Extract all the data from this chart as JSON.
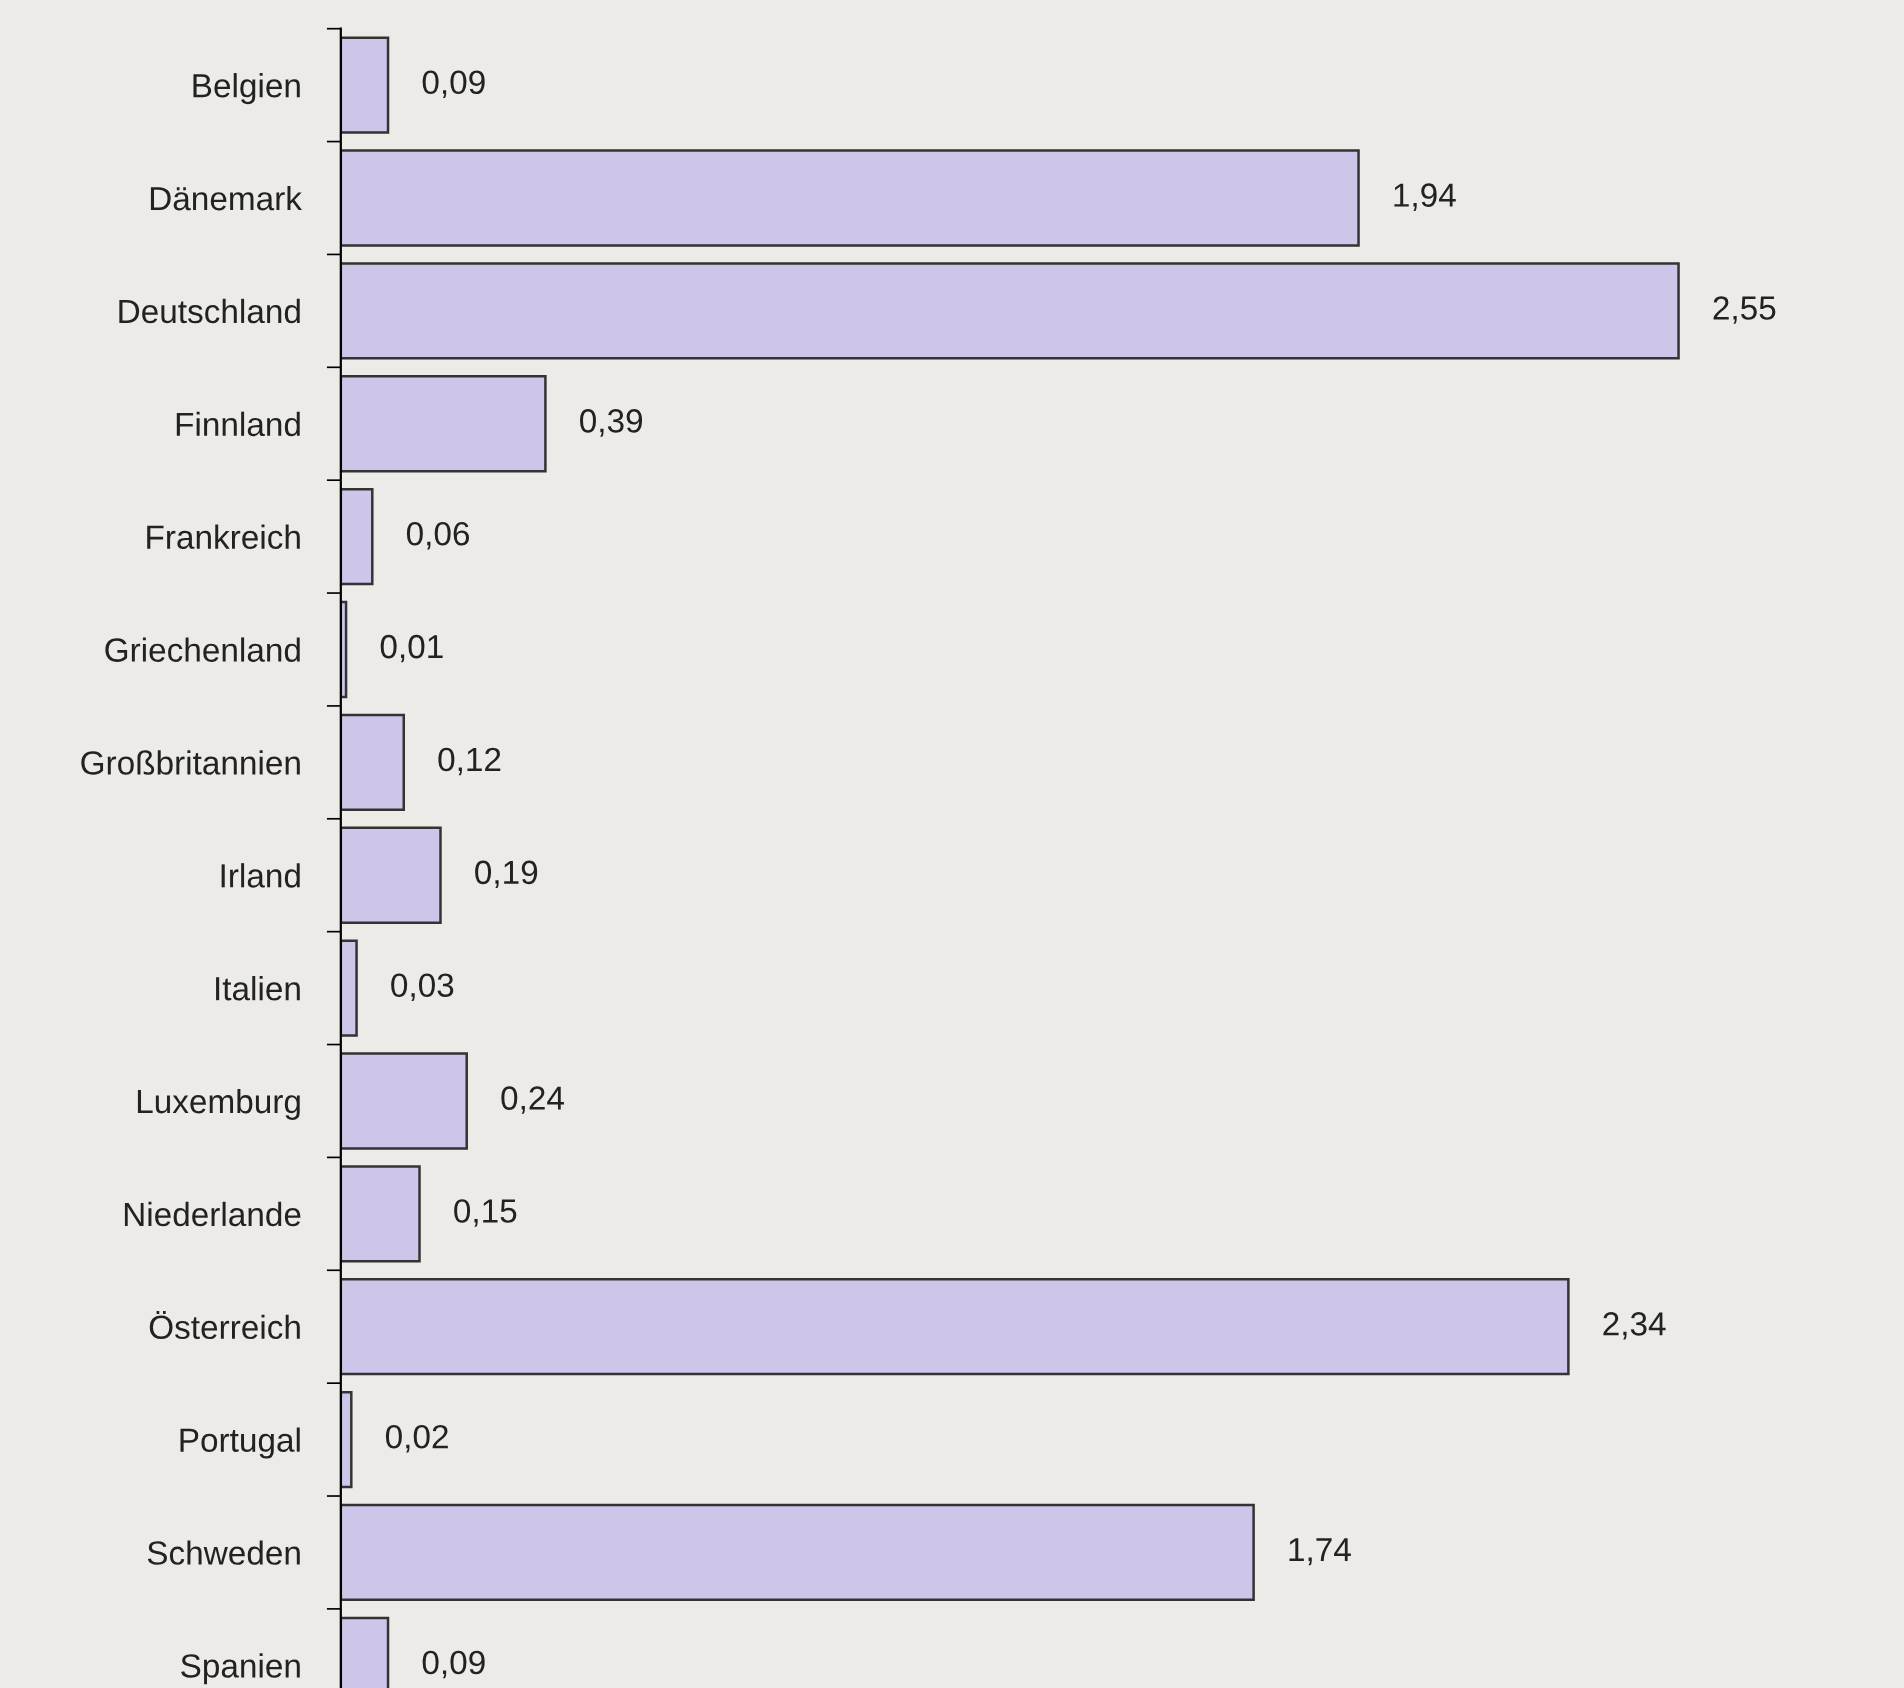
{
  "chart_data": {
    "type": "bar",
    "orientation": "horizontal",
    "categories": [
      "Belgien",
      "Dänemark",
      "Deutschland",
      "Finnland",
      "Frankreich",
      "Griechenland",
      "Großbritannien",
      "Irland",
      "Italien",
      "Luxemburg",
      "Niederlande",
      "Österreich",
      "Portugal",
      "Schweden",
      "Spanien"
    ],
    "values": [
      0.09,
      1.94,
      2.55,
      0.39,
      0.06,
      0.01,
      0.12,
      0.19,
      0.03,
      0.24,
      0.15,
      2.34,
      0.02,
      1.74,
      0.09
    ],
    "value_labels": [
      "0,09",
      "1,94",
      "2,55",
      "0,39",
      "0,06",
      "0,01",
      "0,12",
      "0,19",
      "0,03",
      "0,24",
      "0,15",
      "2,34",
      "0,02",
      "1,74",
      "0,09"
    ],
    "color": "#cdc6e8"
  }
}
